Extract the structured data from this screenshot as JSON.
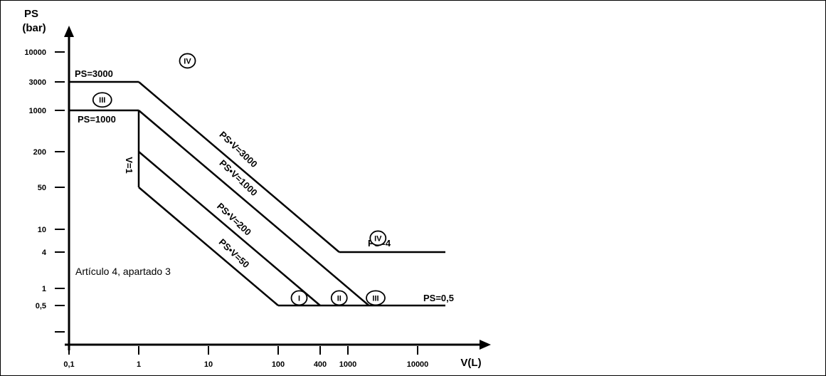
{
  "chart_data": {
    "type": "line",
    "x_scale": "log",
    "y_scale": "log",
    "xlabel": "V(L)",
    "ylabel_line1": "PS",
    "ylabel_line2": "(bar)",
    "x_ticks": [
      {
        "value": 0.1,
        "label": "0,1"
      },
      {
        "value": 1,
        "label": "1"
      },
      {
        "value": 10,
        "label": "10"
      },
      {
        "value": 100,
        "label": "100"
      },
      {
        "value": 400,
        "label": "400"
      },
      {
        "value": 1000,
        "label": "1000"
      },
      {
        "value": 10000,
        "label": "10000"
      }
    ],
    "y_ticks": [
      {
        "value": 0.5,
        "label": "0,5"
      },
      {
        "value": 1,
        "label": "1"
      },
      {
        "value": 4,
        "label": "4"
      },
      {
        "value": 10,
        "label": "10"
      },
      {
        "value": 50,
        "label": "50"
      },
      {
        "value": 200,
        "label": "200"
      },
      {
        "value": 1000,
        "label": "1000"
      },
      {
        "value": 3000,
        "label": "3000"
      },
      {
        "value": 10000,
        "label": "10000"
      }
    ],
    "xlim": [
      0.1,
      40000
    ],
    "ylim": [
      0.5,
      10000
    ],
    "series": [
      {
        "name": "PS=3000",
        "points": [
          [
            0.1,
            3000
          ],
          [
            1,
            3000
          ]
        ]
      },
      {
        "name": "PS·V=3000",
        "points": [
          [
            1,
            3000
          ],
          [
            750,
            4
          ]
        ]
      },
      {
        "name": "PS=4",
        "points": [
          [
            750,
            4
          ],
          [
            25000,
            4
          ]
        ]
      },
      {
        "name": "PS=1000",
        "points": [
          [
            0.1,
            1000
          ],
          [
            1,
            1000
          ]
        ]
      },
      {
        "name": "V=1",
        "points": [
          [
            1,
            1000
          ],
          [
            1,
            50
          ]
        ]
      },
      {
        "name": "PS·V=1000",
        "points": [
          [
            1,
            1000
          ],
          [
            2000,
            0.5
          ]
        ]
      },
      {
        "name": "PS·V=200",
        "points": [
          [
            1,
            200
          ],
          [
            400,
            0.5
          ]
        ]
      },
      {
        "name": "PS·V=50",
        "points": [
          [
            1,
            50
          ],
          [
            100,
            0.5
          ]
        ]
      },
      {
        "name": "PS=0,5",
        "points": [
          [
            100,
            0.5
          ],
          [
            25000,
            0.5
          ]
        ]
      }
    ],
    "annotations": {
      "ps3000": "PS=3000",
      "ps1000": "PS=1000",
      "ps4": "PS=4",
      "ps05": "PS=0,5",
      "v1": "V=1",
      "psv3000": "PS•V=3000",
      "psv1000": "PS•V=1000",
      "psv200": "PS•V=200",
      "psv50": "PS•V=50",
      "note": "Artículo 4, apartado 3"
    },
    "categories": [
      {
        "id": "cat_iv_top",
        "label": "IV",
        "x": 5,
        "y": 7000
      },
      {
        "id": "cat_iii_left",
        "label": "III",
        "x": 0.3,
        "y": 1500
      },
      {
        "id": "cat_iv_right",
        "label": "IV",
        "x": 2700,
        "y": 7
      },
      {
        "id": "cat_i",
        "label": "I",
        "x": 200,
        "y": 0.68
      },
      {
        "id": "cat_ii",
        "label": "II",
        "x": 750,
        "y": 0.68
      },
      {
        "id": "cat_iii_right",
        "label": "III",
        "x": 2500,
        "y": 0.68
      }
    ],
    "grid": false
  }
}
